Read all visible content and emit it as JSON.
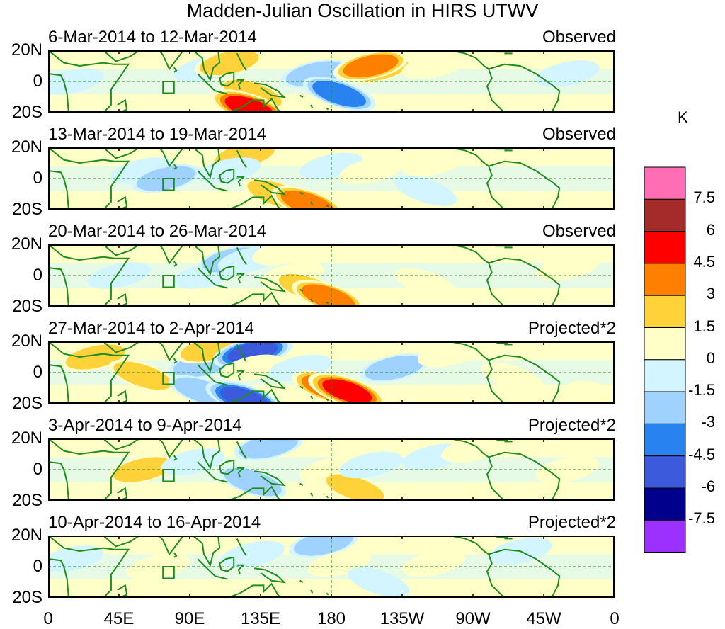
{
  "title": "Madden-Julian Oscillation in HIRS UTWV",
  "panels": [
    {
      "date_range": "6-Mar-2014 to 12-Mar-2014",
      "status": "Observed"
    },
    {
      "date_range": "13-Mar-2014 to 19-Mar-2014",
      "status": "Observed"
    },
    {
      "date_range": "20-Mar-2014 to 26-Mar-2014",
      "status": "Observed"
    },
    {
      "date_range": "27-Mar-2014 to 2-Apr-2014",
      "status": "Projected*2"
    },
    {
      "date_range": "3-Apr-2014 to 9-Apr-2014",
      "status": "Projected*2"
    },
    {
      "date_range": "10-Apr-2014 to 16-Apr-2014",
      "status": "Projected*2"
    }
  ],
  "lat_labels": [
    "20N",
    "0",
    "20S"
  ],
  "lon_labels": [
    "0",
    "45E",
    "90E",
    "135E",
    "180",
    "135W",
    "90W",
    "45W",
    "0"
  ],
  "colorbar": {
    "unit": "K",
    "tick_labels": [
      "7.5",
      "6",
      "4.5",
      "3",
      "1.5",
      "0",
      "-1.5",
      "-3",
      "-4.5",
      "-6",
      "-7.5"
    ],
    "colors": [
      "#ff6eb4",
      "#a52a2a",
      "#ff0000",
      "#ff7f00",
      "#ffd23a",
      "#ffffc8",
      "#d2f5ff",
      "#a0d2ff",
      "#2882f0",
      "#3c5adc",
      "#00008c",
      "#9b30ff"
    ]
  },
  "map_colors": {
    "land_outline": "#1e8c1e",
    "box_outline": "#1e8c1e",
    "dashed_line": "#1e8c1e"
  },
  "chart_data": {
    "type": "heatmap",
    "title": "Madden-Julian Oscillation in HIRS UTWV",
    "x_axis": {
      "range": [
        0,
        360
      ],
      "unit": "degrees longitude",
      "ticks": [
        0,
        45,
        90,
        135,
        180,
        225,
        270,
        315,
        360
      ]
    },
    "y_axis": {
      "range": [
        -20,
        20
      ],
      "unit": "degrees latitude",
      "ticks": [
        20,
        0,
        -20
      ]
    },
    "color_levels": [
      -7.5,
      -6,
      -4.5,
      -3,
      -1.5,
      0,
      1.5,
      3,
      4.5,
      6,
      7.5
    ],
    "unit": "K",
    "anomaly_centers": [
      [
        {
          "lon": 15,
          "lat": 0,
          "value": -1.5
        },
        {
          "lon": 100,
          "lat": 8,
          "value": -1.5
        },
        {
          "lon": 130,
          "lat": -8,
          "value": 3
        },
        {
          "lon": 128,
          "lat": -17,
          "value": 6
        },
        {
          "lon": 115,
          "lat": 12,
          "value": 3
        },
        {
          "lon": 170,
          "lat": 5,
          "value": -3
        },
        {
          "lon": 185,
          "lat": -8,
          "value": -4.5
        },
        {
          "lon": 210,
          "lat": 8,
          "value": 3
        },
        {
          "lon": 205,
          "lat": 10,
          "value": 4.5
        },
        {
          "lon": 245,
          "lat": 10,
          "value": 1.5
        },
        {
          "lon": 330,
          "lat": 5,
          "value": -1.5
        }
      ],
      [
        {
          "lon": 60,
          "lat": 5,
          "value": -1.5
        },
        {
          "lon": 75,
          "lat": 0,
          "value": -3
        },
        {
          "lon": 125,
          "lat": 15,
          "value": 3
        },
        {
          "lon": 115,
          "lat": 5,
          "value": -1.5
        },
        {
          "lon": 145,
          "lat": -10,
          "value": 3
        },
        {
          "lon": 165,
          "lat": -16,
          "value": 4.5
        },
        {
          "lon": 180,
          "lat": 8,
          "value": -1.5
        },
        {
          "lon": 205,
          "lat": 5,
          "value": 1.5
        },
        {
          "lon": 245,
          "lat": 10,
          "value": 1.5
        },
        {
          "lon": 240,
          "lat": -8,
          "value": -1.5
        }
      ],
      [
        {
          "lon": 45,
          "lat": 0,
          "value": -1.5
        },
        {
          "lon": 100,
          "lat": 0,
          "value": -1.5
        },
        {
          "lon": 117,
          "lat": 10,
          "value": -3
        },
        {
          "lon": 128,
          "lat": 10,
          "value": -1.5
        },
        {
          "lon": 155,
          "lat": 0,
          "value": 1.5
        },
        {
          "lon": 165,
          "lat": -8,
          "value": 3
        },
        {
          "lon": 178,
          "lat": -14,
          "value": 4.5
        },
        {
          "lon": 150,
          "lat": 15,
          "value": 1.5
        },
        {
          "lon": 240,
          "lat": -5,
          "value": 1.5
        },
        {
          "lon": 330,
          "lat": 5,
          "value": 1.5
        }
      ],
      [
        {
          "lon": 30,
          "lat": 10,
          "value": 3
        },
        {
          "lon": 60,
          "lat": -2,
          "value": 3
        },
        {
          "lon": 98,
          "lat": 5,
          "value": -3
        },
        {
          "lon": 98,
          "lat": -12,
          "value": -3
        },
        {
          "lon": 103,
          "lat": 15,
          "value": 3
        },
        {
          "lon": 130,
          "lat": 13,
          "value": -6
        },
        {
          "lon": 130,
          "lat": 3,
          "value": 1.5
        },
        {
          "lon": 125,
          "lat": -17,
          "value": -6
        },
        {
          "lon": 160,
          "lat": 3,
          "value": -1.5
        },
        {
          "lon": 178,
          "lat": -10,
          "value": 4.5
        },
        {
          "lon": 190,
          "lat": -12,
          "value": 6
        },
        {
          "lon": 220,
          "lat": 3,
          "value": -3
        },
        {
          "lon": 255,
          "lat": 12,
          "value": 1.5
        },
        {
          "lon": 295,
          "lat": -3,
          "value": 1.5
        },
        {
          "lon": 350,
          "lat": -15,
          "value": 1.5
        }
      ],
      [
        {
          "lon": 60,
          "lat": 0,
          "value": 3
        },
        {
          "lon": 92,
          "lat": 5,
          "value": -1.5
        },
        {
          "lon": 140,
          "lat": 15,
          "value": -3
        },
        {
          "lon": 130,
          "lat": -8,
          "value": -3
        },
        {
          "lon": 180,
          "lat": 0,
          "value": 1.5
        },
        {
          "lon": 195,
          "lat": -12,
          "value": 3
        },
        {
          "lon": 205,
          "lat": 3,
          "value": -1.5
        },
        {
          "lon": 245,
          "lat": 8,
          "value": -1.5
        },
        {
          "lon": 270,
          "lat": 13,
          "value": 1.5
        },
        {
          "lon": 330,
          "lat": 0,
          "value": 1.5
        }
      ],
      [
        {
          "lon": 15,
          "lat": 5,
          "value": -1.5
        },
        {
          "lon": 70,
          "lat": 0,
          "value": 1.5
        },
        {
          "lon": 130,
          "lat": 8,
          "value": -1.5
        },
        {
          "lon": 175,
          "lat": 15,
          "value": -3
        },
        {
          "lon": 185,
          "lat": 2,
          "value": 1.5
        },
        {
          "lon": 210,
          "lat": -10,
          "value": -1.5
        },
        {
          "lon": 245,
          "lat": 2,
          "value": 1.5
        },
        {
          "lon": 300,
          "lat": 10,
          "value": -1.5
        }
      ]
    ]
  }
}
